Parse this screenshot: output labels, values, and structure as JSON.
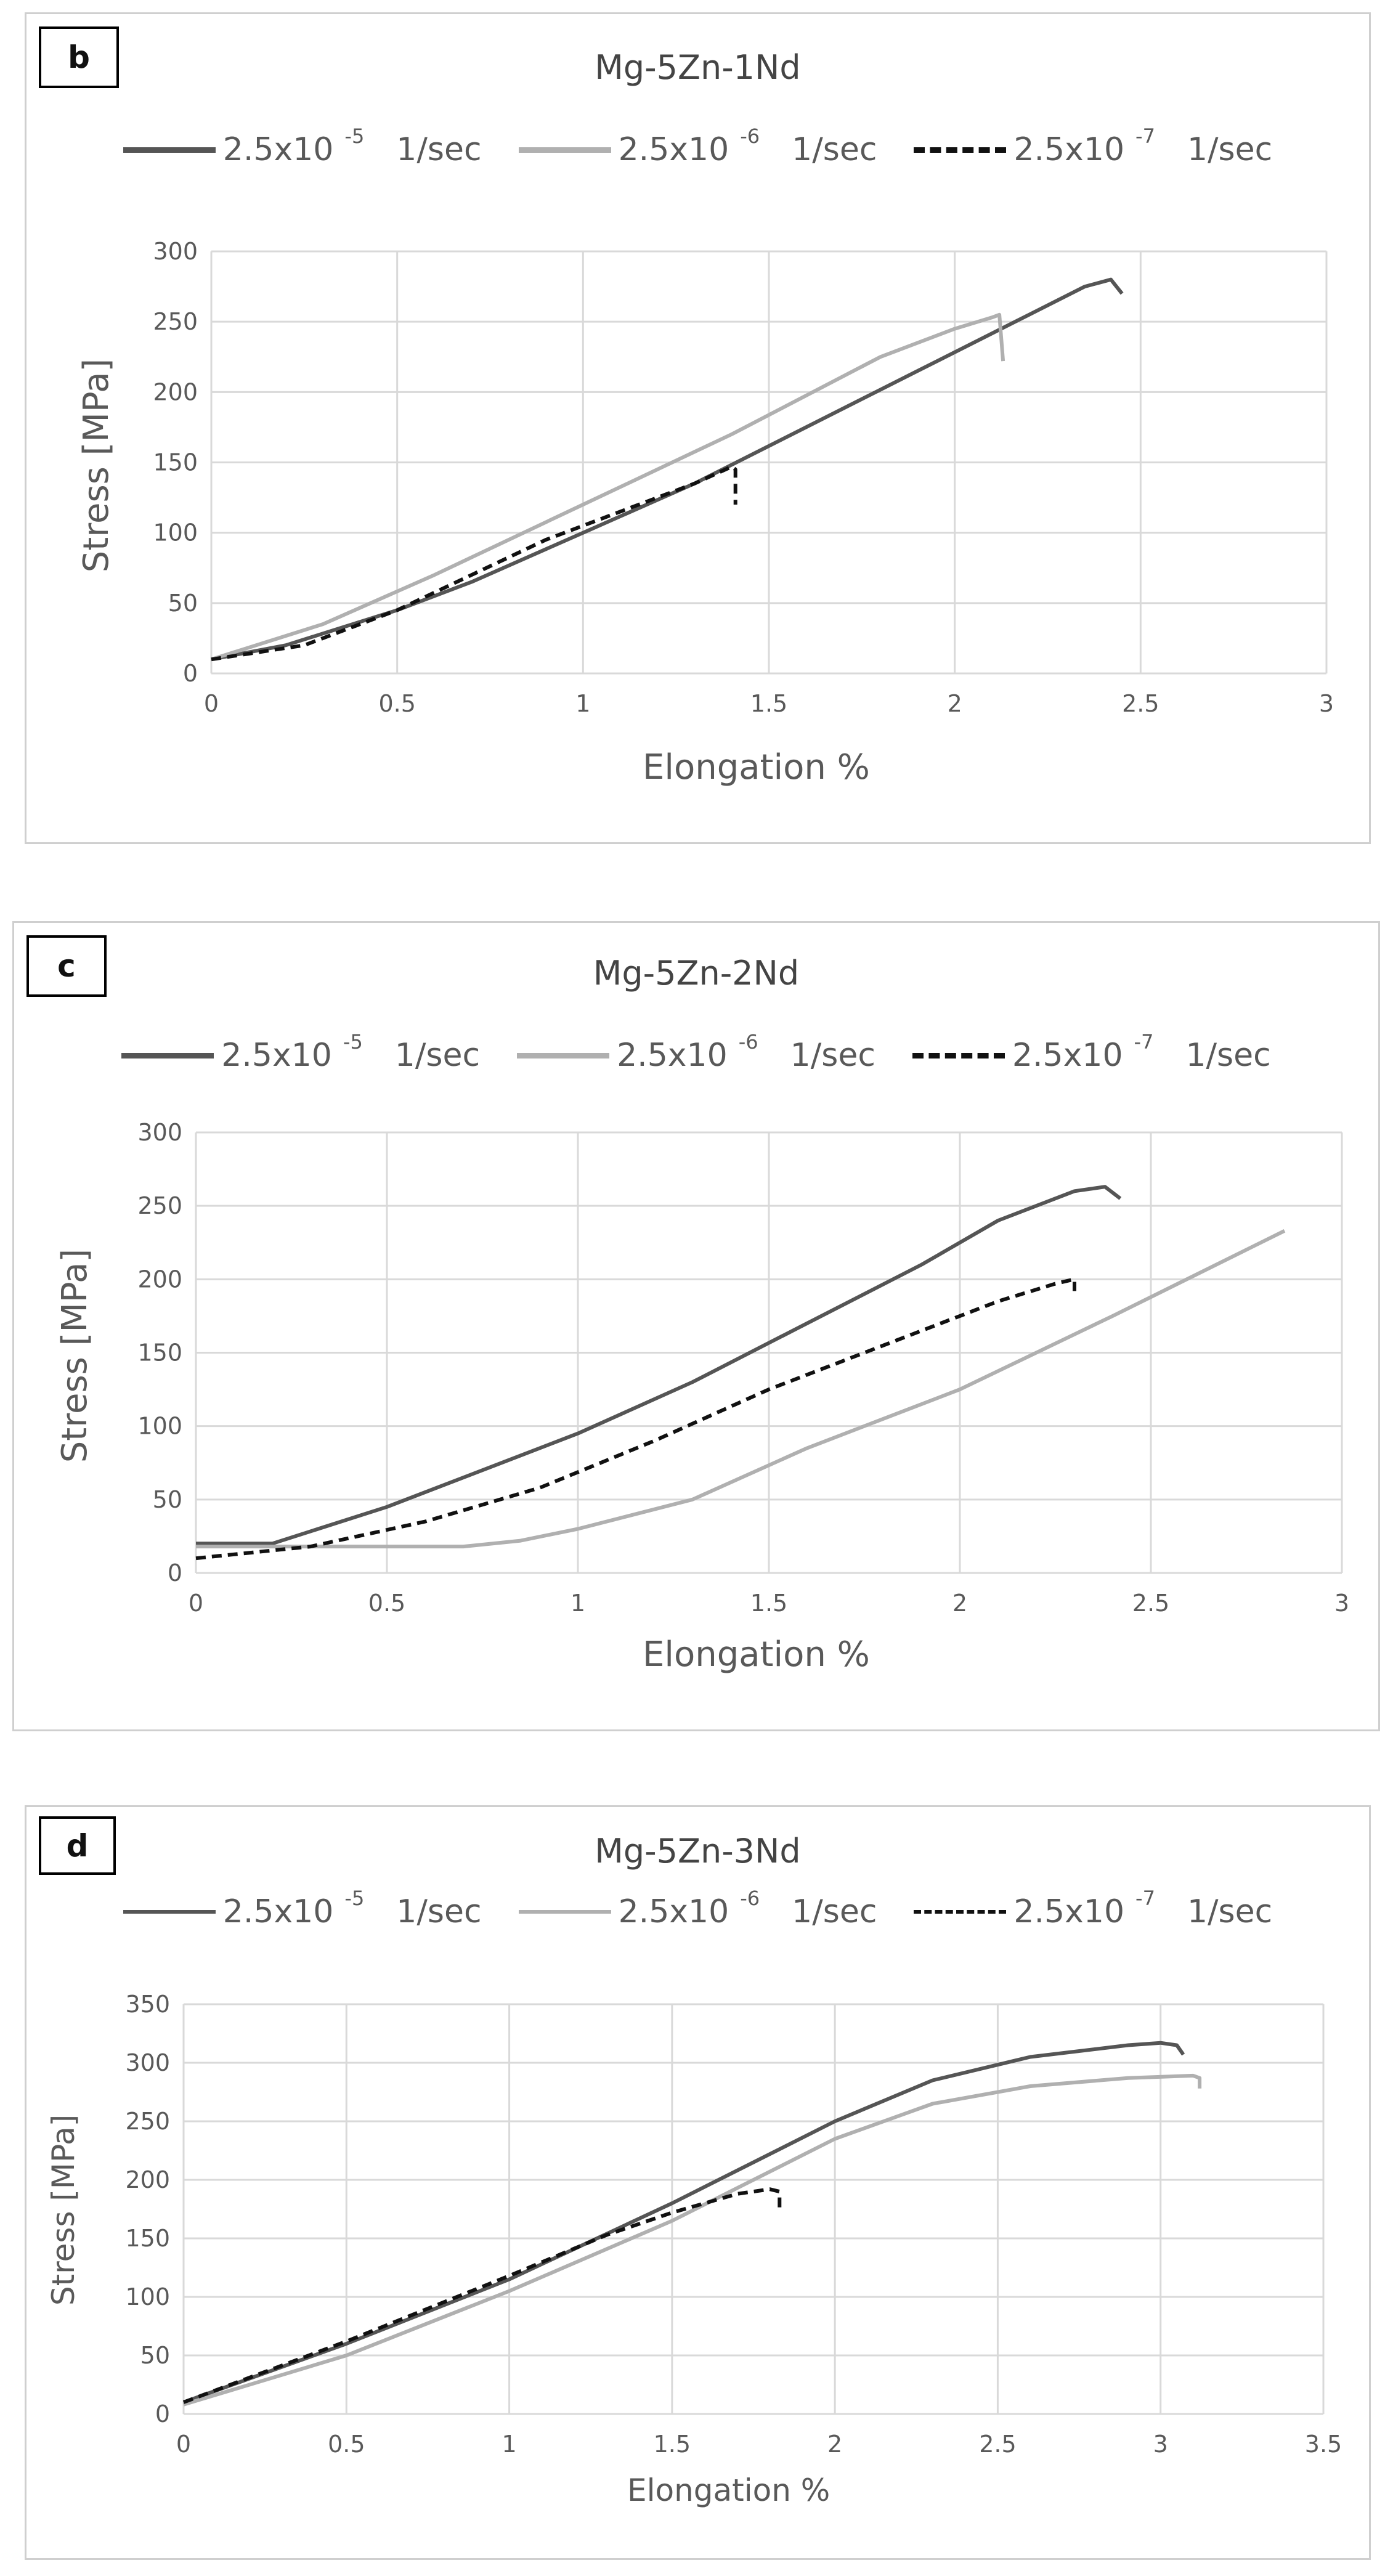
{
  "colors": {
    "series1": "#555555",
    "series2": "#b0b0b0",
    "series3": "#111111",
    "grid": "#d9d9d9",
    "panel_border": "#cfcfcf"
  },
  "chart_data": [
    {
      "type": "line",
      "panel_letter": "b",
      "title": "Mg-5Zn-1Nd",
      "xlabel": "Elongation %",
      "ylabel": "Stress [MPa]",
      "xlim": [
        0,
        3
      ],
      "ylim": [
        0,
        300
      ],
      "xticks": [
        "0",
        "0.5",
        "1",
        "1.5",
        "2",
        "2.5",
        "3"
      ],
      "yticks": [
        "0",
        "50",
        "100",
        "150",
        "200",
        "250",
        "300"
      ],
      "legend": [
        {
          "base": "2.5x10",
          "exp": "-5",
          "unit": "1/sec"
        },
        {
          "base": "2.5x10",
          "exp": "-6",
          "unit": "1/sec"
        },
        {
          "base": "2.5x10",
          "exp": "-7",
          "unit": "1/sec"
        }
      ],
      "series": [
        {
          "name": "2.5x10-5 1/sec",
          "style": "solid-dark",
          "x": [
            0,
            0.2,
            0.5,
            0.7,
            1.0,
            1.3,
            1.6,
            1.9,
            2.2,
            2.35,
            2.42,
            2.45
          ],
          "y": [
            10,
            20,
            45,
            65,
            100,
            135,
            175,
            215,
            255,
            275,
            280,
            270
          ]
        },
        {
          "name": "2.5x10-6 1/sec",
          "style": "solid-light",
          "x": [
            0,
            0.3,
            0.6,
            1.0,
            1.4,
            1.8,
            2.0,
            2.1,
            2.12,
            2.13
          ],
          "y": [
            10,
            35,
            70,
            120,
            170,
            225,
            245,
            253,
            255,
            222
          ]
        },
        {
          "name": "2.5x10-7 1/sec",
          "style": "dashed",
          "x": [
            0,
            0.25,
            0.5,
            0.7,
            0.9,
            1.1,
            1.3,
            1.4,
            1.41,
            1.41
          ],
          "y": [
            10,
            20,
            45,
            70,
            95,
            115,
            135,
            147,
            145,
            120
          ]
        }
      ]
    },
    {
      "type": "line",
      "panel_letter": "c",
      "title": "Mg-5Zn-2Nd",
      "xlabel": "Elongation %",
      "ylabel": "Stress [MPa]",
      "xlim": [
        0,
        3
      ],
      "ylim": [
        0,
        300
      ],
      "xticks": [
        "0",
        "0.5",
        "1",
        "1.5",
        "2",
        "2.5",
        "3"
      ],
      "yticks": [
        "0",
        "50",
        "100",
        "150",
        "200",
        "250",
        "300"
      ],
      "legend": [
        {
          "base": "2.5x10",
          "exp": "-5",
          "unit": "1/sec"
        },
        {
          "base": "2.5x10",
          "exp": "-6",
          "unit": "1/sec"
        },
        {
          "base": "2.5x10",
          "exp": "-7",
          "unit": "1/sec"
        }
      ],
      "series": [
        {
          "name": "2.5x10-5 1/sec",
          "style": "solid-dark",
          "x": [
            0,
            0.2,
            0.5,
            0.8,
            1.0,
            1.3,
            1.6,
            1.9,
            2.1,
            2.3,
            2.38,
            2.42
          ],
          "y": [
            20,
            20,
            45,
            75,
            95,
            130,
            170,
            210,
            240,
            260,
            263,
            255
          ]
        },
        {
          "name": "2.5x10-6 1/sec",
          "style": "solid-light",
          "x": [
            0,
            0.4,
            0.7,
            0.85,
            1.0,
            1.3,
            1.6,
            2.0,
            2.4,
            2.85
          ],
          "y": [
            18,
            18,
            18,
            22,
            30,
            50,
            85,
            125,
            175,
            233
          ]
        },
        {
          "name": "2.5x10-7 1/sec",
          "style": "dashed",
          "x": [
            0,
            0.3,
            0.6,
            0.9,
            1.2,
            1.5,
            1.8,
            2.1,
            2.25,
            2.3,
            2.3
          ],
          "y": [
            10,
            18,
            35,
            58,
            90,
            125,
            155,
            185,
            197,
            200,
            192
          ]
        }
      ]
    },
    {
      "type": "line",
      "panel_letter": "d",
      "title": "Mg-5Zn-3Nd",
      "xlabel": "Elongation %",
      "ylabel": "Stress [MPa]",
      "xlim": [
        0,
        3.5
      ],
      "ylim": [
        0,
        350
      ],
      "xticks": [
        "0",
        "0.5",
        "1",
        "1.5",
        "2",
        "2.5",
        "3",
        "3.5"
      ],
      "yticks": [
        "0",
        "50",
        "100",
        "150",
        "200",
        "250",
        "300",
        "350"
      ],
      "legend": [
        {
          "base": "2.5x10",
          "exp": "-5",
          "unit": "1/sec"
        },
        {
          "base": "2.5x10",
          "exp": "-6",
          "unit": "1/sec"
        },
        {
          "base": "2.5x10",
          "exp": "-7",
          "unit": "1/sec"
        }
      ],
      "series": [
        {
          "name": "2.5x10-5 1/sec",
          "style": "solid-dark",
          "x": [
            0,
            0.5,
            1.0,
            1.5,
            2.0,
            2.3,
            2.6,
            2.9,
            3.0,
            3.05,
            3.07
          ],
          "y": [
            10,
            60,
            115,
            180,
            250,
            285,
            305,
            315,
            317,
            315,
            307
          ]
        },
        {
          "name": "2.5x10-6 1/sec",
          "style": "solid-light",
          "x": [
            0,
            0.5,
            1.0,
            1.5,
            2.0,
            2.3,
            2.6,
            2.9,
            3.1,
            3.12,
            3.12
          ],
          "y": [
            8,
            50,
            105,
            165,
            235,
            265,
            280,
            287,
            289,
            287,
            278
          ]
        },
        {
          "name": "2.5x10-7 1/sec",
          "style": "dashed",
          "x": [
            0,
            0.5,
            1.0,
            1.3,
            1.5,
            1.7,
            1.8,
            1.83,
            1.83
          ],
          "y": [
            10,
            62,
            118,
            153,
            172,
            188,
            192,
            190,
            175
          ]
        }
      ]
    }
  ]
}
